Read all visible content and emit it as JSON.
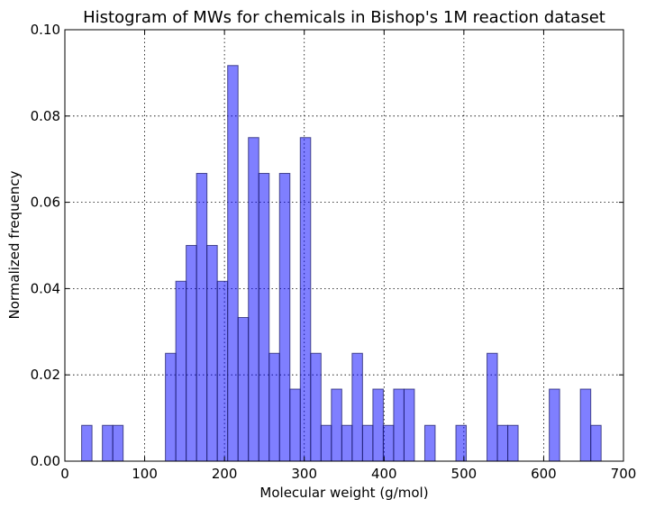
{
  "chart_data": {
    "type": "bar",
    "title": "Histogram of MWs for chemicals in Bishop's 1M reaction dataset",
    "xlabel": "Molecular weight (g/mol)",
    "ylabel": "Normalized frequency",
    "xlim": [
      0,
      700
    ],
    "ylim": [
      0,
      0.1
    ],
    "xticks": [
      0,
      100,
      200,
      300,
      400,
      500,
      600,
      700
    ],
    "yticks": [
      0.0,
      0.02,
      0.04,
      0.06,
      0.08,
      0.1
    ],
    "xtick_labels": [
      "0",
      "100",
      "200",
      "300",
      "400",
      "500",
      "600",
      "700"
    ],
    "ytick_labels": [
      "0.00",
      "0.02",
      "0.04",
      "0.06",
      "0.08",
      "0.10"
    ],
    "grid": true,
    "bar_color": "#0000ff",
    "bar_opacity": 0.5,
    "bars": [
      {
        "x0": 21,
        "x1": 34,
        "value": 0.0083
      },
      {
        "x0": 47,
        "x1": 60,
        "value": 0.0083
      },
      {
        "x0": 60,
        "x1": 73,
        "value": 0.0083
      },
      {
        "x0": 126,
        "x1": 139,
        "value": 0.025
      },
      {
        "x0": 139,
        "x1": 152,
        "value": 0.0417
      },
      {
        "x0": 152,
        "x1": 165,
        "value": 0.05
      },
      {
        "x0": 165,
        "x1": 178,
        "value": 0.0667
      },
      {
        "x0": 178,
        "x1": 191,
        "value": 0.05
      },
      {
        "x0": 191,
        "x1": 204,
        "value": 0.0417
      },
      {
        "x0": 204,
        "x1": 217,
        "value": 0.0917
      },
      {
        "x0": 217,
        "x1": 230,
        "value": 0.0333
      },
      {
        "x0": 230,
        "x1": 243,
        "value": 0.075
      },
      {
        "x0": 243,
        "x1": 256,
        "value": 0.0667
      },
      {
        "x0": 256,
        "x1": 269,
        "value": 0.025
      },
      {
        "x0": 269,
        "x1": 282,
        "value": 0.0667
      },
      {
        "x0": 282,
        "x1": 295,
        "value": 0.0167
      },
      {
        "x0": 295,
        "x1": 308,
        "value": 0.075
      },
      {
        "x0": 308,
        "x1": 321,
        "value": 0.025
      },
      {
        "x0": 321,
        "x1": 334,
        "value": 0.0083
      },
      {
        "x0": 334,
        "x1": 347,
        "value": 0.0167
      },
      {
        "x0": 347,
        "x1": 360,
        "value": 0.0083
      },
      {
        "x0": 360,
        "x1": 373,
        "value": 0.025
      },
      {
        "x0": 373,
        "x1": 386,
        "value": 0.0083
      },
      {
        "x0": 386,
        "x1": 399,
        "value": 0.0167
      },
      {
        "x0": 399,
        "x1": 412,
        "value": 0.0083
      },
      {
        "x0": 412,
        "x1": 425,
        "value": 0.0167
      },
      {
        "x0": 425,
        "x1": 438,
        "value": 0.0167
      },
      {
        "x0": 451,
        "x1": 464,
        "value": 0.0083
      },
      {
        "x0": 490,
        "x1": 503,
        "value": 0.0083
      },
      {
        "x0": 529,
        "x1": 542,
        "value": 0.025
      },
      {
        "x0": 542,
        "x1": 555,
        "value": 0.0083
      },
      {
        "x0": 555,
        "x1": 568,
        "value": 0.0083
      },
      {
        "x0": 607,
        "x1": 620,
        "value": 0.0167
      },
      {
        "x0": 646,
        "x1": 659,
        "value": 0.0167
      },
      {
        "x0": 659,
        "x1": 672,
        "value": 0.0083
      }
    ]
  }
}
